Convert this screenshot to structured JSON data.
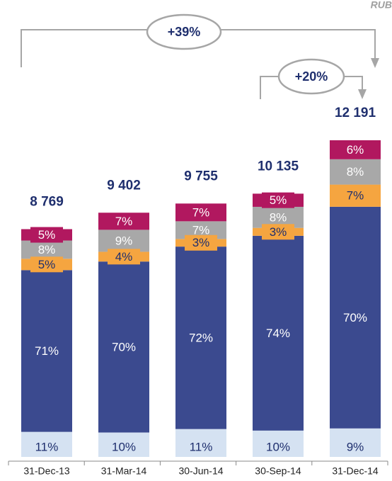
{
  "chart_data": {
    "type": "stacked_bar",
    "unit": "RUB",
    "categories": [
      "31-Dec-13",
      "31-Mar-14",
      "30-Jun-14",
      "30-Sep-14",
      "31-Dec-14"
    ],
    "totals": {
      "values": [
        8769,
        9402,
        9755,
        10135,
        12191
      ],
      "value_labels": [
        "8 769",
        "9 402",
        "9 755",
        "10 135",
        "12 191"
      ]
    },
    "series": [
      {
        "color": "#d5e2f2",
        "text_color": "#1f2f6e",
        "values": [
          11,
          10,
          11,
          10,
          9
        ],
        "value_labels": [
          "11%",
          "10%",
          "11%",
          "10%",
          "9%"
        ]
      },
      {
        "color": "#3b4a8f",
        "text_color": "#ffffff",
        "values": [
          71,
          70,
          72,
          74,
          70
        ],
        "value_labels": [
          "71%",
          "70%",
          "72%",
          "74%",
          "70%"
        ]
      },
      {
        "color": "#f5a540",
        "text_color": "#1f2f6e",
        "values": [
          5,
          4,
          3,
          3,
          7
        ],
        "value_labels": [
          "5%",
          "4%",
          "3%",
          "3%",
          "7%"
        ]
      },
      {
        "color": "#a8a8a8",
        "text_color": "#ffffff",
        "values": [
          8,
          9,
          7,
          8,
          8
        ],
        "value_labels": [
          "8%",
          "9%",
          "7%",
          "8%",
          "8%"
        ]
      },
      {
        "color": "#b1185f",
        "text_color": "#ffffff",
        "values": [
          5,
          7,
          7,
          5,
          6
        ],
        "value_labels": [
          "5%",
          "7%",
          "7%",
          "5%",
          "6%"
        ]
      }
    ],
    "annotations": [
      {
        "text": "+39%"
      },
      {
        "text": "+20%"
      }
    ]
  }
}
